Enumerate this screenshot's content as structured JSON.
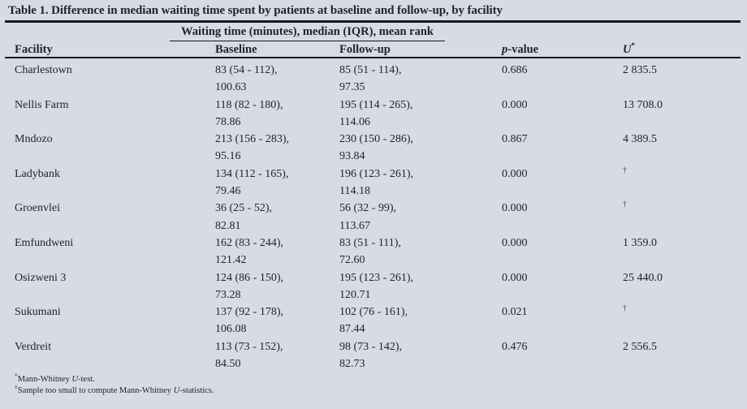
{
  "table": {
    "title": "Table 1. Difference in median waiting time spent by patients at baseline and follow-up, by facility",
    "span_header": "Waiting time (minutes), median (IQR), mean rank",
    "columns": {
      "facility": "Facility",
      "baseline": "Baseline",
      "followup": "Follow-up",
      "p_italic": "p",
      "p_rest": "-value",
      "u_letter": "U",
      "u_sup": "*"
    },
    "rows": [
      {
        "facility": "Charlestown",
        "baseline_iqr": "83 (54 - 112),",
        "baseline_rank": "100.63",
        "followup_iqr": "85 (51 - 114),",
        "followup_rank": "97.35",
        "p_value": "0.686",
        "u": "2 835.5"
      },
      {
        "facility": "Nellis Farm",
        "baseline_iqr": "118 (82 - 180),",
        "baseline_rank": "78.86",
        "followup_iqr": "195 (114 - 265),",
        "followup_rank": "114.06",
        "p_value": "0.000",
        "u": "13 708.0"
      },
      {
        "facility": "Mndozo",
        "baseline_iqr": "213 (156 - 283),",
        "baseline_rank": "95.16",
        "followup_iqr": "230 (150 - 286),",
        "followup_rank": "93.84",
        "p_value": "0.867",
        "u": "4 389.5"
      },
      {
        "facility": "Ladybank",
        "baseline_iqr": "134 (112 - 165),",
        "baseline_rank": "79.46",
        "followup_iqr": "196 (123 - 261),",
        "followup_rank": "114.18",
        "p_value": "0.000",
        "u": "†"
      },
      {
        "facility": "Groenvlei",
        "baseline_iqr": "36 (25 - 52),",
        "baseline_rank": "82.81",
        "followup_iqr": "56 (32 - 99),",
        "followup_rank": "113.67",
        "p_value": "0.000",
        "u": "†"
      },
      {
        "facility": "Emfundweni",
        "baseline_iqr": "162 (83 - 244),",
        "baseline_rank": "121.42",
        "followup_iqr": "83 (51 - 111),",
        "followup_rank": "72.60",
        "p_value": "0.000",
        "u": "1 359.0"
      },
      {
        "facility": "Osizweni 3",
        "baseline_iqr": "124 (86 - 150),",
        "baseline_rank": "73.28",
        "followup_iqr": "195 (123 - 261),",
        "followup_rank": "120.71",
        "p_value": "0.000",
        "u": "25 440.0"
      },
      {
        "facility": "Sukumani",
        "baseline_iqr": "137 (92 - 178),",
        "baseline_rank": "106.08",
        "followup_iqr": "102 (76 - 161),",
        "followup_rank": "87.44",
        "p_value": "0.021",
        "u": "†"
      },
      {
        "facility": "Verdreit",
        "baseline_iqr": "113 (73 - 152),",
        "baseline_rank": "84.50",
        "followup_iqr": "98 (73 - 142),",
        "followup_rank": "82.73",
        "p_value": "0.476",
        "u": "2 556.5"
      }
    ],
    "footnotes": [
      {
        "marker": "*",
        "prefix": "Mann-Whitney ",
        "italic": "U",
        "suffix": "-test."
      },
      {
        "marker": "†",
        "prefix": "Sample too small to compute Mann-Whitney ",
        "italic": "U",
        "suffix": "-statistics."
      }
    ]
  },
  "colors": {
    "background": "#d8dbe3",
    "text": "#20242f",
    "rule": "#15171c"
  }
}
